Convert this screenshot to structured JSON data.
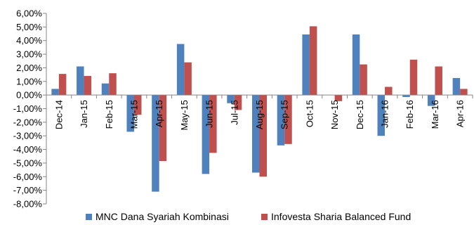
{
  "chart_data": {
    "type": "bar",
    "categories": [
      "Dec-14",
      "Jan-15",
      "Feb-15",
      "Mar-15",
      "Apr-15",
      "May-15",
      "Jun-15",
      "Jul-15",
      "Aug-15",
      "Sep-15",
      "Oct-15",
      "Nov-15",
      "Dec-15",
      "Jan-16",
      "Feb-16",
      "Mar-16",
      "Apr-16"
    ],
    "series": [
      {
        "name": "MNC Dana Syariah Kombinasi",
        "color": "#4F81BD",
        "values": [
          0.45,
          2.1,
          0.85,
          -2.7,
          -7.1,
          3.75,
          -5.8,
          -0.6,
          -5.7,
          -3.7,
          4.45,
          0.0,
          4.45,
          -3.0,
          -0.15,
          -0.8,
          1.25
        ]
      },
      {
        "name": "Infovesta Sharia Balanced Fund",
        "color": "#C0504D",
        "values": [
          1.55,
          1.4,
          1.6,
          -1.45,
          -4.85,
          2.4,
          -4.25,
          -1.1,
          -6.0,
          -3.6,
          5.05,
          -0.45,
          2.25,
          0.6,
          2.6,
          2.1,
          0.45
        ]
      }
    ],
    "yticks": [
      "6,00%",
      "5,00%",
      "4,00%",
      "3,00%",
      "2,00%",
      "1,00%",
      "0,00%",
      "-1,00%",
      "-2,00%",
      "-3,00%",
      "-4,00%",
      "-5,00%",
      "-6,00%",
      "-7,00%",
      "-8,00%"
    ],
    "ylim": [
      -8,
      6
    ],
    "title": "",
    "xlabel": "",
    "ylabel": "",
    "legend_position": "bottom",
    "grid": false
  }
}
